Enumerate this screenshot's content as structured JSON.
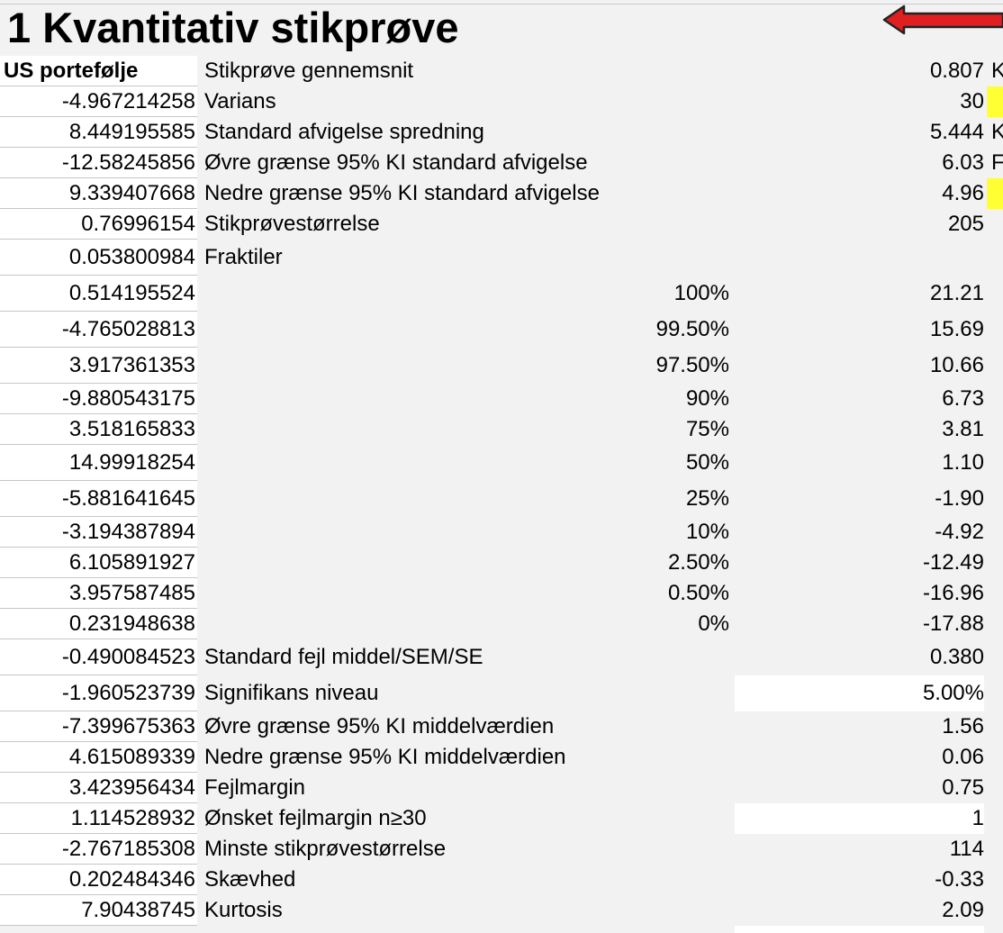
{
  "title": "1 Kvantitativ stikprøve",
  "column_header": "US portefølje",
  "rows": [
    {
      "num": "-4.967214258",
      "label": "Varians",
      "pct": "",
      "value": "30",
      "edge": "",
      "yellow": true,
      "white": false
    },
    {
      "num": "8.449195585",
      "label": "Standard afvigelse spredning",
      "pct": "",
      "value": "5.444",
      "edge": "K",
      "yellow": false,
      "white": false
    },
    {
      "num": "-12.58245856",
      "label": "Øvre grænse 95% KI standard afvigelse",
      "pct": "",
      "value": "6.03",
      "edge": "F",
      "yellow": false,
      "white": false
    },
    {
      "num": "9.339407668",
      "label": "Nedre grænse 95% KI standard afvigelse",
      "pct": "",
      "value": "4.96",
      "edge": "",
      "yellow": true,
      "white": false
    },
    {
      "num": "0.76996154",
      "label": "Stikprøvestørrelse",
      "pct": "",
      "value": "205",
      "edge": "",
      "yellow": false,
      "white": false
    },
    {
      "num": "0.053800984",
      "label": "Fraktiler",
      "pct": "",
      "value": "",
      "edge": "",
      "yellow": false,
      "white": false
    },
    {
      "num": "0.514195524",
      "label": "",
      "pct": "100%",
      "value": "21.21",
      "edge": "",
      "yellow": false,
      "white": false
    },
    {
      "num": "-4.765028813",
      "label": "",
      "pct": "99.50%",
      "value": "15.69",
      "edge": "",
      "yellow": false,
      "white": false
    },
    {
      "num": "3.917361353",
      "label": "",
      "pct": "97.50%",
      "value": "10.66",
      "edge": "",
      "yellow": false,
      "white": false
    },
    {
      "num": "-9.880543175",
      "label": "",
      "pct": "90%",
      "value": "6.73",
      "edge": "",
      "yellow": false,
      "white": false
    },
    {
      "num": "3.518165833",
      "label": "",
      "pct": "75%",
      "value": "3.81",
      "edge": "",
      "yellow": false,
      "white": false
    },
    {
      "num": "14.99918254",
      "label": "",
      "pct": "50%",
      "value": "1.10",
      "edge": "",
      "yellow": false,
      "white": false
    },
    {
      "num": "-5.881641645",
      "label": "",
      "pct": "25%",
      "value": "-1.90",
      "edge": "",
      "yellow": false,
      "white": false
    },
    {
      "num": "-3.194387894",
      "label": "",
      "pct": "10%",
      "value": "-4.92",
      "edge": "",
      "yellow": false,
      "white": false
    },
    {
      "num": "6.105891927",
      "label": "",
      "pct": "2.50%",
      "value": "-12.49",
      "edge": "",
      "yellow": false,
      "white": false
    },
    {
      "num": "3.957587485",
      "label": "",
      "pct": "0.50%",
      "value": "-16.96",
      "edge": "",
      "yellow": false,
      "white": false
    },
    {
      "num": "0.231948638",
      "label": "",
      "pct": "0%",
      "value": "-17.88",
      "edge": "",
      "yellow": false,
      "white": false
    },
    {
      "num": "-0.490084523",
      "label": "Standard fejl middel/SEM/SE",
      "pct": "",
      "value": "0.380",
      "edge": "",
      "yellow": false,
      "white": false
    },
    {
      "num": "-1.960523739",
      "label": "Signifikans niveau",
      "pct": "",
      "value": "5.00%",
      "edge": "",
      "yellow": false,
      "white": true
    },
    {
      "num": "-7.399675363",
      "label": "Øvre grænse 95% KI middelværdien",
      "pct": "",
      "value": "1.56",
      "edge": "",
      "yellow": false,
      "white": false
    },
    {
      "num": "4.615089339",
      "label": "Nedre grænse 95% KI middelværdien",
      "pct": "",
      "value": "0.06",
      "edge": "",
      "yellow": false,
      "white": false
    },
    {
      "num": "3.423956434",
      "label": "Fejlmargin",
      "pct": "",
      "value": "0.75",
      "edge": "",
      "yellow": false,
      "white": false
    },
    {
      "num": "1.114528932",
      "label": "Ønsket fejlmargin n≥30",
      "pct": "",
      "value": "1",
      "edge": "",
      "yellow": false,
      "white": true
    },
    {
      "num": "-2.767185308",
      "label": "Minste stikprøvestørrelse",
      "pct": "",
      "value": "114",
      "edge": "",
      "yellow": false,
      "white": false
    },
    {
      "num": "0.202484346",
      "label": "Skævhed",
      "pct": "",
      "value": "-0.33",
      "edge": "",
      "yellow": false,
      "white": false
    },
    {
      "num": "7.90438745",
      "label": "Kurtosis",
      "pct": "",
      "value": "2.09",
      "edge": "",
      "yellow": false,
      "white": false
    }
  ],
  "header_row": {
    "label": "Stikprøve gennemsnit",
    "value": "0.807",
    "edge": "K"
  },
  "colors": {
    "arrow_fill": "#e02020",
    "highlight": "#ffff33",
    "cell_white": "#ffffff",
    "background": "#f2f2f2"
  }
}
